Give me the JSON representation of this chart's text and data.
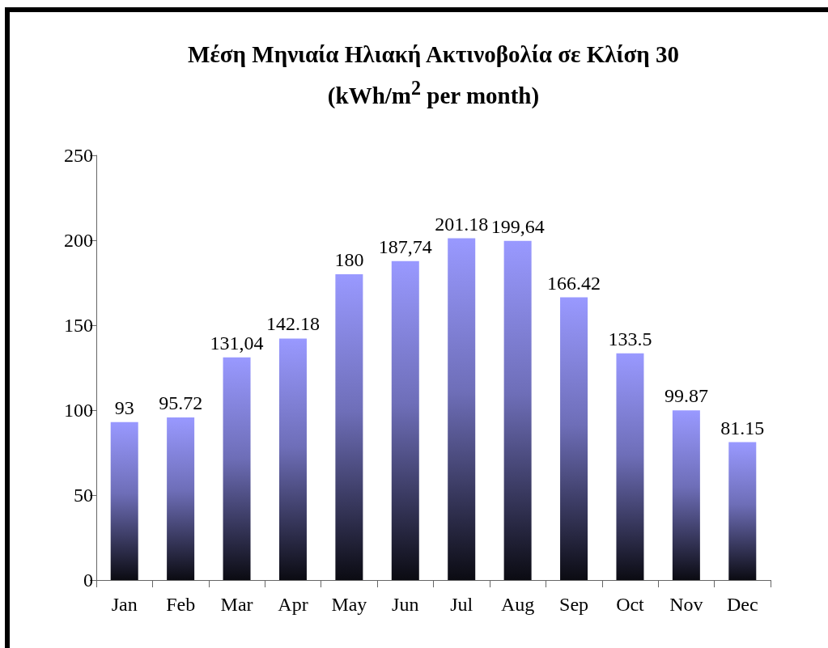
{
  "chart_data": {
    "type": "bar",
    "title": "Μέση Μηνιαία Ηλιακή Ακτινοβολία σε Κλίση 30",
    "subtitle": "(kWh/m$^{2}$ per month)",
    "categories": [
      "Jan",
      "Feb",
      "Mar",
      "Apr",
      "May",
      "Jun",
      "Jul",
      "Aug",
      "Sep",
      "Oct",
      "Nov",
      "Dec"
    ],
    "values": [
      93,
      95.72,
      131.04,
      142.18,
      180,
      187.74,
      201.18,
      199.64,
      166.42,
      133.5,
      99.87,
      81.15
    ],
    "value_labels": [
      "93",
      "95.72",
      "131,04",
      "142.18",
      "180",
      "187,74",
      "201.18",
      "199,64",
      "166.42",
      "133.5",
      "99.87",
      "81.15"
    ],
    "color": "#9999ff",
    "ylim": [
      0,
      250
    ],
    "yticks": [
      0,
      50,
      100,
      150,
      200,
      250
    ]
  }
}
